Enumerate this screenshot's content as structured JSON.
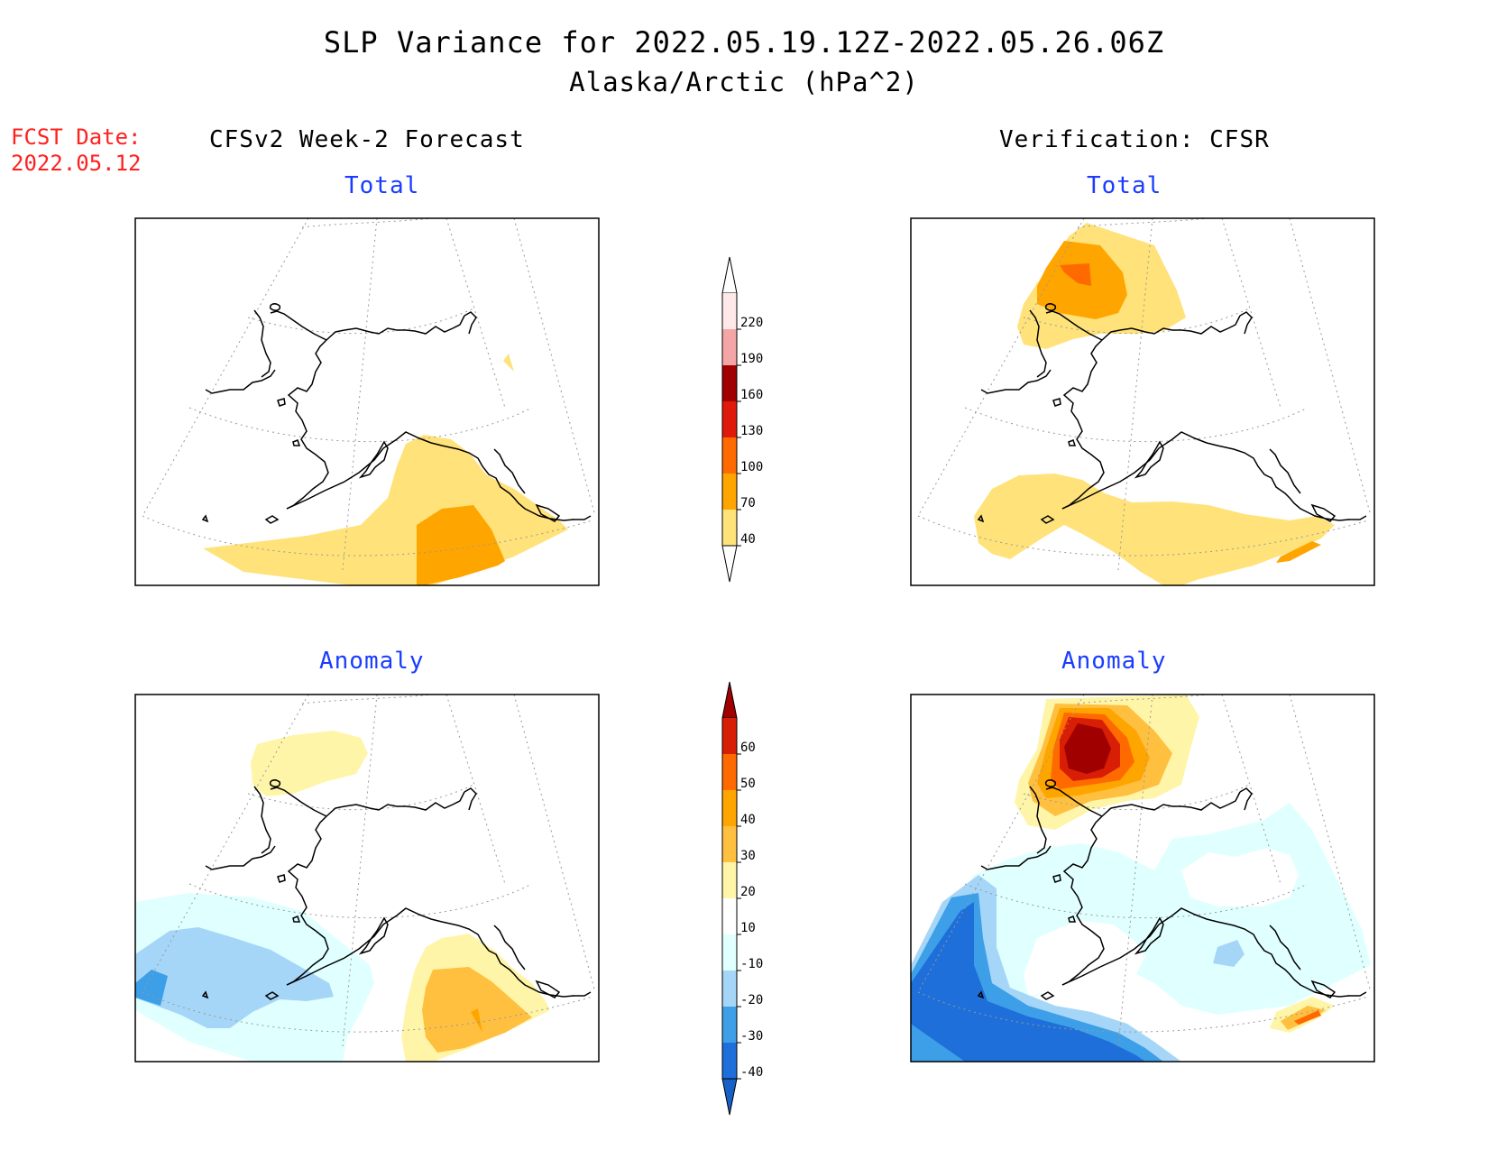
{
  "title": {
    "line1": "SLP Variance for 2022.05.19.12Z-2022.05.26.06Z",
    "line2": "Alaska/Arctic (hPa^2)"
  },
  "forecast_date": {
    "label": "FCST Date:",
    "value": "2022.05.12"
  },
  "left_column_heading": "CFSv2 Week-2 Forecast",
  "right_column_heading": "Verification: CFSR",
  "panels": {
    "forecast_total": {
      "label": "Total"
    },
    "verification_total": {
      "label": "Total"
    },
    "forecast_anomaly": {
      "label": "Anomaly"
    },
    "verification_anomaly": {
      "label": "Anomaly"
    }
  },
  "total_colorbar": {
    "ticks": [
      "220",
      "190",
      "160",
      "130",
      "100",
      "70",
      "40"
    ],
    "colors": [
      "#ffffff",
      "#ffe8e8",
      "#f4a6a6",
      "#a00000",
      "#e01a0a",
      "#ff6a00",
      "#ffa500",
      "#ffe27a",
      "#ffffff"
    ]
  },
  "anomaly_colorbar": {
    "ticks": [
      "60",
      "50",
      "40",
      "30",
      "20",
      "10",
      "-10",
      "-20",
      "-30",
      "-40"
    ],
    "colors": [
      "#a00000",
      "#d81e05",
      "#ff6a00",
      "#ffa500",
      "#ffc040",
      "#fff5a8",
      "#ffffff",
      "#e0ffff",
      "#a5d6f7",
      "#3c9fe8",
      "#1e6fd9",
      "#1660c8"
    ]
  },
  "colors": {
    "title_text": "#000000",
    "forecast_date_text": "#ff2020",
    "panel_label_text": "#1a3cff"
  }
}
